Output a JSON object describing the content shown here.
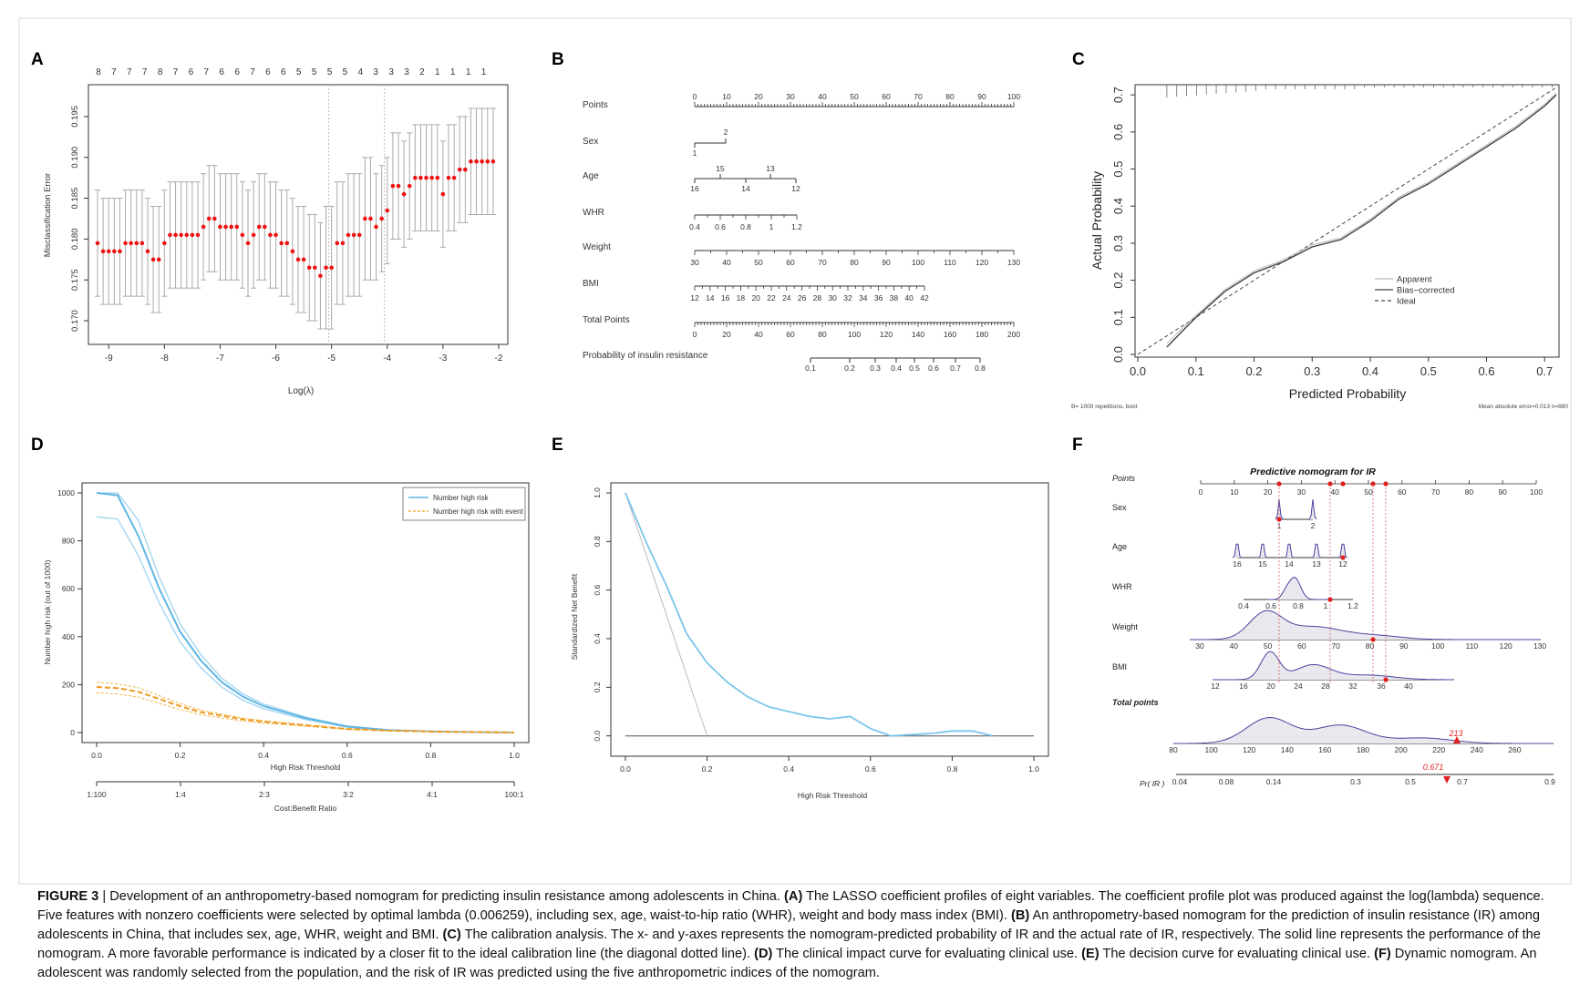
{
  "panels": {
    "A": {
      "label": "A",
      "top_counts": [
        "8",
        "7",
        "7",
        "7",
        "8",
        "7",
        "6",
        "7",
        "6",
        "6",
        "7",
        "6",
        "6",
        "5",
        "5",
        "5",
        "5",
        "4",
        "3",
        "3",
        "3",
        "2",
        "1",
        "1",
        "1",
        "1"
      ],
      "ylabel": "Misclassification Error",
      "xlabel": "Log(λ)",
      "xticks": [
        "-9",
        "-8",
        "-7",
        "-6",
        "-5",
        "-4",
        "-3",
        "-2"
      ],
      "yticks": [
        "0.170",
        "0.175",
        "0.180",
        "0.185",
        "0.190",
        "0.195"
      ]
    },
    "B": {
      "label": "B",
      "rows": [
        {
          "name": "Points",
          "labels": [
            "0",
            "10",
            "20",
            "30",
            "40",
            "50",
            "60",
            "70",
            "80",
            "90",
            "100"
          ]
        },
        {
          "name": "Sex",
          "labels_above": [
            "2"
          ],
          "labels_below": [
            "1"
          ]
        },
        {
          "name": "Age",
          "labels_above": [
            "15",
            "13"
          ],
          "labels_below": [
            "16",
            "14",
            "12"
          ]
        },
        {
          "name": "WHR",
          "labels": [
            "0.4",
            "0.6",
            "0.8",
            "1",
            "1.2"
          ]
        },
        {
          "name": "Weight",
          "labels": [
            "30",
            "40",
            "50",
            "60",
            "70",
            "80",
            "90",
            "100",
            "110",
            "120",
            "130"
          ]
        },
        {
          "name": "BMI",
          "labels": [
            "12",
            "14",
            "16",
            "18",
            "20",
            "22",
            "24",
            "26",
            "28",
            "30",
            "32",
            "34",
            "36",
            "38",
            "40",
            "42"
          ]
        },
        {
          "name": "Total Points",
          "labels": [
            "0",
            "20",
            "40",
            "60",
            "80",
            "100",
            "120",
            "140",
            "160",
            "180",
            "200"
          ]
        },
        {
          "name": "Probability of insulin resistance",
          "labels": [
            "0.1",
            "0.2",
            "0.3",
            "0.4",
            "0.5",
            "0.6",
            "0.7",
            "0.8"
          ]
        }
      ]
    },
    "C": {
      "label": "C",
      "xlabel": "Predicted Probability",
      "ylabel": "Actual Probability",
      "xticks": [
        "0.0",
        "0.1",
        "0.2",
        "0.3",
        "0.4",
        "0.5",
        "0.6",
        "0.7"
      ],
      "yticks": [
        "0.0",
        "0.1",
        "0.2",
        "0.3",
        "0.4",
        "0.5",
        "0.6",
        "0.7"
      ],
      "legend": [
        "Apparent",
        "Bias−corrected",
        "Ideal"
      ],
      "footnote_left": "B= 1000 repetitions, boot",
      "footnote_right": "Mean absolute error=0.013 n=880"
    },
    "D": {
      "label": "D",
      "ylabel": "Number high risk (out of 1000)",
      "xlabel": "High Risk Threshold",
      "xlabel2": "Cost:Benefit Ratio",
      "xticks": [
        "0.0",
        "0.2",
        "0.4",
        "0.6",
        "0.8",
        "1.0"
      ],
      "ratio_ticks": [
        "1:100",
        "1:4",
        "2:3",
        "3:2",
        "4:1",
        "100:1"
      ],
      "yticks": [
        "0",
        "200",
        "400",
        "600",
        "800",
        "1000"
      ],
      "legend": [
        "Number high risk",
        "Number high risk with event"
      ]
    },
    "E": {
      "label": "E",
      "ylabel": "Standardized Net Benefit",
      "xlabel": "High Risk Threshold",
      "xticks": [
        "0.0",
        "0.2",
        "0.4",
        "0.6",
        "0.8",
        "1.0"
      ],
      "yticks": [
        "0.0",
        "0.2",
        "0.4",
        "0.6",
        "0.8",
        "1.0"
      ]
    },
    "F": {
      "label": "F",
      "title": "Predictive nomogram for IR",
      "rows": [
        {
          "name": "Points",
          "labels": [
            "0",
            "10",
            "20",
            "30",
            "40",
            "50",
            "60",
            "70",
            "80",
            "90",
            "100"
          ]
        },
        {
          "name": "Sex",
          "labels": [
            "1",
            "2"
          ]
        },
        {
          "name": "Age",
          "labels": [
            "16",
            "15",
            "14",
            "13",
            "12"
          ]
        },
        {
          "name": "WHR",
          "labels": [
            "0.4",
            "0.6",
            "0.8",
            "1",
            "1.2"
          ]
        },
        {
          "name": "Weight",
          "labels": [
            "30",
            "40",
            "50",
            "60",
            "70",
            "80",
            "90",
            "100",
            "110",
            "120",
            "130"
          ]
        },
        {
          "name": "BMI",
          "labels": [
            "12",
            "16",
            "20",
            "24",
            "28",
            "32",
            "36",
            "40"
          ]
        },
        {
          "name": "Total points",
          "labels": [
            "80",
            "100",
            "120",
            "140",
            "160",
            "180",
            "200",
            "220",
            "240",
            "260"
          ]
        },
        {
          "name": "Pr( IR )",
          "labels": [
            "0.04",
            "0.08",
            "0.14",
            "0.3",
            "0.5",
            "0.7",
            "0.9"
          ]
        }
      ],
      "total_value": "213",
      "prob_value": "0.671"
    }
  },
  "caption": {
    "figure_label": "FIGURE 3",
    "intro": " | Development of an anthropometry-based nomogram for predicting insulin resistance among adolescents in China. ",
    "a_tag": "(A)",
    "a_text": " The LASSO coefficient profiles of eight variables. The coefficient profile plot was produced against the log(lambda) sequence. Five features with nonzero coefficients were selected by optimal lambda (0.006259), including sex, age, waist-to-hip ratio (WHR), weight and body mass index (BMI). ",
    "b_tag": "(B)",
    "b_text": " An anthropometry-based nomogram for the prediction of insulin resistance (IR) among adolescents in China, that includes sex, age, WHR, weight and BMI. ",
    "c_tag": "(C)",
    "c_text": " The calibration analysis. The x- and y-axes represents the nomogram-predicted probability of IR and the actual rate of IR, respectively. The solid line represents the performance of the nomogram. A more favorable performance is indicated by a closer fit to the ideal calibration line (the diagonal dotted line). ",
    "d_tag": "(D)",
    "d_text": " The clinical impact curve for evaluating clinical use. ",
    "e_tag": "(E)",
    "e_text": " The decision curve for evaluating clinical use. ",
    "f_tag": "(F)",
    "f_text": " Dynamic nomogram. An adolescent was randomly selected from the population, and the risk of IR was predicted using the five anthropometric indices of the nomogram."
  },
  "chart_data": [
    {
      "panel": "A",
      "type": "scatter",
      "xlabel": "Log(λ)",
      "ylabel": "Misclassification Error",
      "xlim": [
        -9.3,
        -2
      ],
      "ylim": [
        0.168,
        0.198
      ],
      "x": [
        -9.2,
        -9.1,
        -9.0,
        -8.9,
        -8.8,
        -8.7,
        -8.6,
        -8.5,
        -8.4,
        -8.3,
        -8.2,
        -8.1,
        -8.0,
        -7.9,
        -7.8,
        -7.7,
        -7.6,
        -7.5,
        -7.4,
        -7.3,
        -7.2,
        -7.1,
        -7.0,
        -6.9,
        -6.8,
        -6.7,
        -6.6,
        -6.5,
        -6.4,
        -6.3,
        -6.2,
        -6.1,
        -6.0,
        -5.9,
        -5.8,
        -5.7,
        -5.6,
        -5.5,
        -5.4,
        -5.3,
        -5.2,
        -5.1,
        -5.0,
        -4.9,
        -4.8,
        -4.7,
        -4.6,
        -4.5,
        -4.4,
        -4.3,
        -4.2,
        -4.1,
        -4.0,
        -3.9,
        -3.8,
        -3.7,
        -3.6,
        -3.5,
        -3.4,
        -3.3,
        -3.2,
        -3.1,
        -3.0,
        -2.9,
        -2.8,
        -2.7,
        -2.6,
        -2.5,
        -2.4,
        -2.3,
        -2.2,
        -2.1
      ],
      "y": [
        0.1795,
        0.1785,
        0.1785,
        0.1785,
        0.1785,
        0.1795,
        0.1795,
        0.1795,
        0.1795,
        0.1785,
        0.1775,
        0.1775,
        0.1795,
        0.1805,
        0.1805,
        0.1805,
        0.1805,
        0.1805,
        0.1805,
        0.1815,
        0.1825,
        0.1825,
        0.1815,
        0.1815,
        0.1815,
        0.1815,
        0.1805,
        0.1795,
        0.1805,
        0.1815,
        0.1815,
        0.1805,
        0.1805,
        0.1795,
        0.1795,
        0.1785,
        0.1775,
        0.1775,
        0.1765,
        0.1765,
        0.1755,
        0.1765,
        0.1765,
        0.1795,
        0.1795,
        0.1805,
        0.1805,
        0.1805,
        0.1825,
        0.1825,
        0.1815,
        0.1825,
        0.1835,
        0.1865,
        0.1865,
        0.1855,
        0.1865,
        0.1875,
        0.1875,
        0.1875,
        0.1875,
        0.1875,
        0.1855,
        0.1875,
        0.1875,
        0.1885,
        0.1885,
        0.1895,
        0.1895,
        0.1895,
        0.1895,
        0.1895
      ],
      "vlines": [
        -5.05,
        -4.05
      ]
    },
    {
      "panel": "C",
      "type": "line",
      "xlabel": "Predicted Probability",
      "ylabel": "Actual Probability",
      "xlim": [
        0,
        0.72
      ],
      "ylim": [
        0,
        0.72
      ],
      "series": [
        {
          "name": "Bias−corrected",
          "x": [
            0.05,
            0.1,
            0.15,
            0.2,
            0.25,
            0.3,
            0.35,
            0.4,
            0.45,
            0.5,
            0.55,
            0.6,
            0.65,
            0.7,
            0.72
          ],
          "y": [
            0.02,
            0.1,
            0.17,
            0.22,
            0.25,
            0.29,
            0.31,
            0.36,
            0.42,
            0.46,
            0.51,
            0.56,
            0.61,
            0.67,
            0.7
          ]
        },
        {
          "name": "Apparent",
          "x": [
            0.05,
            0.1,
            0.15,
            0.2,
            0.25,
            0.3,
            0.35,
            0.4,
            0.45,
            0.5,
            0.55,
            0.6,
            0.65,
            0.7,
            0.72
          ],
          "y": [
            0.03,
            0.105,
            0.175,
            0.225,
            0.255,
            0.295,
            0.315,
            0.365,
            0.425,
            0.465,
            0.515,
            0.565,
            0.615,
            0.675,
            0.705
          ]
        },
        {
          "name": "Ideal",
          "x": [
            0,
            0.72
          ],
          "y": [
            0,
            0.72
          ]
        }
      ]
    },
    {
      "panel": "D",
      "type": "line",
      "xlabel": "High Risk Threshold",
      "ylabel": "Number high risk (out of 1000)",
      "xlim": [
        0,
        1
      ],
      "ylim": [
        0,
        1000
      ],
      "series": [
        {
          "name": "Number high risk",
          "x": [
            0,
            0.05,
            0.1,
            0.15,
            0.2,
            0.25,
            0.3,
            0.35,
            0.4,
            0.5,
            0.6,
            0.7,
            0.8,
            0.9,
            1.0
          ],
          "y": [
            1000,
            990,
            820,
            600,
            420,
            300,
            210,
            150,
            110,
            60,
            25,
            10,
            5,
            2,
            0
          ]
        },
        {
          "name": "Number high risk with event",
          "x": [
            0,
            0.05,
            0.1,
            0.15,
            0.2,
            0.25,
            0.3,
            0.35,
            0.4,
            0.5,
            0.6,
            0.7,
            0.8,
            0.9,
            1.0
          ],
          "y": [
            190,
            185,
            170,
            140,
            110,
            85,
            70,
            55,
            45,
            30,
            15,
            8,
            4,
            2,
            0
          ]
        }
      ]
    },
    {
      "panel": "E",
      "type": "line",
      "xlabel": "High Risk Threshold",
      "ylabel": "Standardized Net Benefit",
      "xlim": [
        0,
        1
      ],
      "ylim": [
        -0.02,
        1
      ],
      "series": [
        {
          "name": "model",
          "x": [
            0,
            0.05,
            0.1,
            0.15,
            0.2,
            0.25,
            0.3,
            0.35,
            0.4,
            0.45,
            0.5,
            0.55,
            0.6,
            0.65,
            0.7,
            0.75,
            0.8,
            0.85,
            0.9
          ],
          "y": [
            1.0,
            0.8,
            0.62,
            0.42,
            0.3,
            0.22,
            0.16,
            0.12,
            0.1,
            0.08,
            0.07,
            0.08,
            0.03,
            0.0,
            0.005,
            0.01,
            0.02,
            0.02,
            0.0
          ]
        },
        {
          "name": "all",
          "x": [
            0,
            0.2
          ],
          "y": [
            1.0,
            0.0
          ]
        },
        {
          "name": "none",
          "x": [
            0,
            1.0
          ],
          "y": [
            0,
            0
          ]
        }
      ]
    }
  ]
}
